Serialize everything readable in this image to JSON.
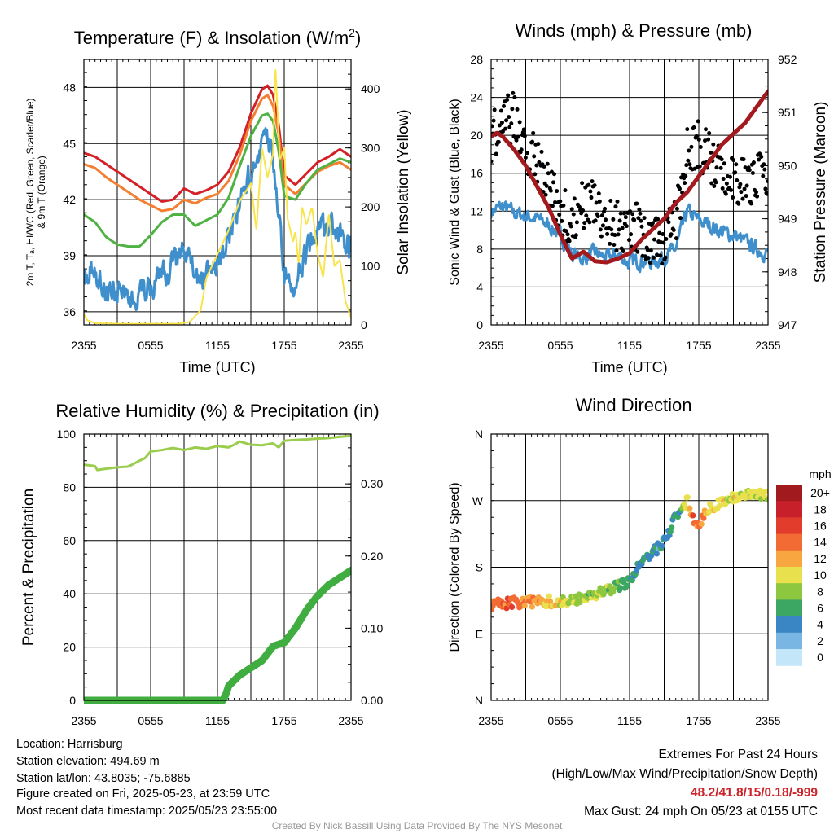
{
  "colors": {
    "temp": "#d42027",
    "dewpoint": "#4fb243",
    "heat_index": "#e4322b",
    "temp9m": "#f47f32",
    "sonic_wind": "#3f8fcc",
    "gust": "#000000",
    "solar": "#f9e44c",
    "pressure": "#a3191e",
    "rh": "#9acd4e",
    "precip": "#3fad3f",
    "max_line": "#cc2229"
  },
  "chart_data": [
    {
      "type": "line",
      "title": "Temperature (F) & Insolation (W/m",
      "title_sup": "2",
      "title_end": ")",
      "xlabel": "Time (UTC)",
      "ylabel_left": [
        "2m T, Tₐ, HI/WC (Red, Green, Scarlet/Blue)",
        "& 9m T (Orange)"
      ],
      "ylabel_right": "Solar Insolation (Yellow)",
      "x_ticks": [
        "2355",
        "0555",
        "1155",
        "1755",
        "2355"
      ],
      "x_range_hours": [
        0,
        24
      ],
      "ylim_left": [
        35.3,
        49.5
      ],
      "yticks_left": [
        36,
        39,
        42,
        45,
        48
      ],
      "ylim_right": [
        0,
        450
      ],
      "yticks_right": [
        0,
        100,
        200,
        300,
        400
      ],
      "grid": true,
      "series": [
        {
          "name": "2m T",
          "color_key": "temp",
          "axis": "left",
          "width": 3,
          "x": [
            0,
            1,
            2,
            3,
            4,
            5,
            6,
            7,
            8,
            9,
            10,
            11,
            12,
            13,
            14,
            15,
            16,
            16.5,
            17,
            17.5,
            18,
            19,
            20,
            21,
            22,
            23,
            24
          ],
          "y": [
            44.5,
            44.3,
            43.9,
            43.5,
            43.1,
            42.7,
            42.3,
            41.9,
            42.0,
            42.6,
            42.3,
            42.5,
            42.8,
            43.5,
            44.8,
            46.6,
            47.9,
            48.1,
            47.6,
            46.0,
            43.3,
            42.8,
            43.4,
            44.0,
            44.3,
            44.7,
            44.3
          ]
        },
        {
          "name": "9m T",
          "color_key": "temp9m",
          "axis": "left",
          "width": 3,
          "x": [
            0,
            1,
            2,
            3,
            4,
            5,
            6,
            7,
            8,
            9,
            10,
            11,
            12,
            13,
            14,
            15,
            16,
            16.5,
            17,
            17.5,
            18,
            19,
            20,
            21,
            22,
            23,
            24
          ],
          "y": [
            43.9,
            43.7,
            43.2,
            42.8,
            42.4,
            42.0,
            41.7,
            41.4,
            41.5,
            42.0,
            41.8,
            42.1,
            42.3,
            43.0,
            44.4,
            46.2,
            47.4,
            47.6,
            47.0,
            45.5,
            42.8,
            42.3,
            42.9,
            43.5,
            43.8,
            44.0,
            43.6
          ]
        },
        {
          "name": "Td",
          "color_key": "dewpoint",
          "axis": "left",
          "width": 3,
          "x": [
            0,
            1,
            2,
            3,
            4,
            5,
            6,
            7,
            8,
            9,
            10,
            11,
            12,
            13,
            14,
            15,
            16,
            16.5,
            17,
            17.5,
            18,
            19,
            20,
            21,
            22,
            23,
            24
          ],
          "y": [
            41.2,
            40.8,
            40.0,
            39.6,
            39.5,
            39.5,
            40.1,
            40.8,
            41.2,
            41.2,
            40.6,
            40.9,
            41.2,
            42.1,
            43.8,
            45.4,
            46.5,
            46.6,
            46.2,
            44.6,
            42.2,
            42.0,
            42.9,
            43.6,
            43.9,
            44.2,
            44.0
          ]
        },
        {
          "name": "HI/WC",
          "color_key": "sonic_wind",
          "axis": "left",
          "width": 3,
          "noise": 0.5,
          "x": [
            0,
            1,
            2,
            3,
            4,
            5,
            6,
            7,
            8,
            9,
            10,
            11,
            12,
            13,
            14,
            15,
            16,
            16.5,
            17,
            17.5,
            18,
            19,
            20,
            21,
            22,
            23,
            24
          ],
          "y": [
            38.3,
            38.0,
            37.3,
            37.0,
            36.9,
            36.8,
            37.3,
            37.8,
            38.5,
            39.2,
            37.8,
            37.9,
            38.5,
            39.8,
            41.8,
            43.6,
            44.8,
            45.3,
            44.0,
            41.5,
            38.2,
            37.4,
            39.3,
            40.4,
            40.6,
            40.2,
            39.4
          ]
        },
        {
          "name": "Solar",
          "color_key": "solar",
          "axis": "right",
          "width": 2,
          "x": [
            0,
            0.3,
            1,
            3,
            5,
            7,
            8.5,
            9.5,
            10.5,
            11,
            12,
            13,
            14,
            15,
            15.5,
            16,
            16.5,
            17,
            17.2,
            17.6,
            18,
            18.3,
            18.8,
            19,
            19.3,
            19.6,
            20,
            20.5,
            21,
            21.5,
            22,
            22.5,
            23,
            23.5,
            24
          ],
          "y": [
            18,
            8,
            3,
            2,
            2,
            2,
            2,
            5,
            25,
            80,
            120,
            160,
            210,
            240,
            160,
            300,
            250,
            290,
            440,
            280,
            300,
            180,
            140,
            160,
            100,
            200,
            170,
            200,
            120,
            80,
            190,
            100,
            110,
            40,
            12
          ]
        }
      ]
    },
    {
      "type": "line",
      "title": "Winds (mph) & Pressure (mb)",
      "xlabel": "Time (UTC)",
      "ylabel_left": "Sonic Wind & Gust (Blue, Black)",
      "ylabel_right": "Station Pressure (Maroon)",
      "x_ticks": [
        "2355",
        "0555",
        "1155",
        "1755",
        "2355"
      ],
      "x_range_hours": [
        0,
        24
      ],
      "ylim_left": [
        0,
        28
      ],
      "yticks_left": [
        0,
        4,
        8,
        12,
        16,
        20,
        24,
        28
      ],
      "ylim_right": [
        947,
        952
      ],
      "yticks_right": [
        947,
        948,
        949,
        950,
        951,
        952
      ],
      "grid": true,
      "series": [
        {
          "name": "Sonic Wind",
          "color_key": "sonic_wind",
          "axis": "left",
          "width": 3,
          "noise": 0.6,
          "x": [
            0,
            1,
            2,
            3,
            4,
            5,
            6,
            7,
            8,
            9,
            10,
            11,
            12,
            13,
            14,
            15,
            16,
            17,
            18,
            19,
            20,
            21,
            22,
            23,
            24
          ],
          "y": [
            12,
            12.5,
            11.8,
            11.5,
            11.2,
            10.5,
            9.5,
            7.5,
            7.0,
            7.6,
            7.0,
            7.4,
            6.5,
            6.8,
            6.6,
            7.2,
            8.0,
            12.0,
            11.0,
            10.5,
            9.8,
            9.5,
            8.8,
            8.0,
            7.5
          ]
        },
        {
          "name": "Gust",
          "color_key": "gust",
          "axis": "left",
          "type": "scatter",
          "count": 330,
          "x": [
            0,
            1,
            2,
            3,
            4,
            5,
            6,
            7,
            8,
            9,
            10,
            11,
            12,
            13,
            14,
            15,
            16,
            17,
            18,
            19,
            20,
            21,
            22,
            23,
            24
          ],
          "y": [
            20,
            21.5,
            22,
            19,
            17,
            14.5,
            12,
            11,
            12.5,
            13,
            11,
            10.5,
            10.5,
            10,
            9,
            9,
            11,
            18,
            19,
            17.5,
            16,
            15.5,
            15,
            15.5,
            15
          ]
        },
        {
          "name": "Pressure",
          "color_key": "pressure",
          "axis": "right",
          "width": 5,
          "x": [
            0,
            0.5,
            1,
            2,
            3,
            4,
            5,
            6,
            7,
            8,
            9,
            10,
            11,
            12,
            13,
            14,
            15,
            16,
            17,
            18,
            19,
            20,
            21,
            22,
            23,
            24
          ],
          "y": [
            950.55,
            950.62,
            950.55,
            950.3,
            950.0,
            949.6,
            949.2,
            948.7,
            948.25,
            948.38,
            948.2,
            948.18,
            948.25,
            948.35,
            948.6,
            948.8,
            949.0,
            949.3,
            949.5,
            949.8,
            950.1,
            950.4,
            950.6,
            950.8,
            951.1,
            951.4
          ]
        }
      ]
    },
    {
      "type": "line",
      "title": "Relative Humidity (%) & Precipitation (in)",
      "xlabel": "",
      "ylabel_left": "Percent & Precipitation",
      "x_ticks": [
        "2355",
        "0555",
        "1155",
        "1755",
        "2355"
      ],
      "x_range_hours": [
        0,
        24
      ],
      "ylim_left": [
        0,
        100
      ],
      "yticks_left": [
        0,
        20,
        40,
        60,
        80,
        100
      ],
      "ylim_right": [
        0,
        0.369
      ],
      "yticks_right_labels": [
        "0.00",
        "0.10",
        "0.20",
        "0.30"
      ],
      "yticks_right": [
        0,
        0.1,
        0.2,
        0.3
      ],
      "grid": true,
      "series": [
        {
          "name": "RH",
          "color_key": "rh",
          "axis": "left",
          "width": 3,
          "x": [
            0,
            1,
            1.2,
            2,
            3,
            4,
            5,
            5.5,
            6,
            7,
            8,
            9,
            10,
            11,
            12,
            13,
            13.5,
            14,
            15,
            16,
            17,
            17.5,
            18,
            19,
            20,
            21,
            22,
            23,
            24
          ],
          "y": [
            88.5,
            88.0,
            86.5,
            87.0,
            87.5,
            87.8,
            90.0,
            91.0,
            93.5,
            94.0,
            94.8,
            94.0,
            95.0,
            94.5,
            95.5,
            95.0,
            96.0,
            97.2,
            96.0,
            95.8,
            96.5,
            95.0,
            97.5,
            97.8,
            98.0,
            98.3,
            98.5,
            99.0,
            99.3
          ]
        },
        {
          "name": "Precipitation",
          "color_key": "precip",
          "axis": "right",
          "width": 9,
          "x": [
            0,
            12.5,
            12.8,
            13,
            14,
            15,
            16,
            17,
            18,
            19,
            20,
            21,
            22,
            23,
            24
          ],
          "y": [
            0,
            0,
            0.01,
            0.02,
            0.035,
            0.045,
            0.055,
            0.075,
            0.08,
            0.1,
            0.125,
            0.145,
            0.16,
            0.17,
            0.18
          ]
        }
      ]
    },
    {
      "type": "scatter",
      "title": "Wind Direction",
      "ylabel_left": "Direction (Colored By Speed)",
      "x_ticks": [
        "2355",
        "0555",
        "1155",
        "1755",
        "2355"
      ],
      "x_range_hours": [
        0,
        24
      ],
      "ylim_left": [
        0,
        360
      ],
      "yticks_left_labels": [
        "N",
        "E",
        "S",
        "W",
        "N"
      ],
      "yticks_left": [
        0,
        90,
        180,
        270,
        360
      ],
      "grid": true,
      "colorbar": {
        "unit": "mph",
        "labels": [
          "20+",
          "18",
          "16",
          "14",
          "12",
          "10",
          "8",
          "6",
          "4",
          "2",
          "0"
        ],
        "colors": [
          "#a11a1d",
          "#c8202a",
          "#e23c2c",
          "#f36b34",
          "#f8a740",
          "#e8e04c",
          "#8dc63f",
          "#3ca663",
          "#3a86c4",
          "#79b6e3",
          "#c3e6f9"
        ]
      },
      "series": [
        {
          "name": "Direction",
          "type": "scatter",
          "x": [
            0,
            1,
            2,
            3,
            4,
            5,
            6,
            7,
            8,
            9,
            10,
            11,
            12,
            12.5,
            13,
            14,
            14.5,
            15,
            15.5,
            16,
            16.5,
            17,
            17.5,
            18,
            19,
            20,
            21,
            22,
            23,
            24
          ],
          "y": [
            130,
            131,
            132,
            133,
            133,
            134,
            132,
            135,
            140,
            143,
            148,
            155,
            160,
            175,
            185,
            200,
            207,
            218,
            230,
            250,
            255,
            270,
            245,
            240,
            260,
            268,
            275,
            276,
            278,
            276
          ],
          "speed": [
            14,
            14,
            15,
            13,
            12,
            11,
            10,
            9,
            8,
            8,
            8,
            7,
            6,
            5,
            5,
            5,
            4,
            4,
            5,
            5,
            6,
            10,
            15,
            14,
            10,
            10,
            10,
            10,
            9,
            9
          ]
        }
      ]
    }
  ],
  "footer": {
    "location": "Location: Harrisburg",
    "elevation": "Station elevation: 494.69 m",
    "latlon": "Station lat/lon: 43.8035; -75.6885",
    "created": "Figure created on Fri, 2025-05-23, at 23:59 UTC",
    "recent": "Most recent data timestamp: 2025/05/23 23:55:00",
    "extremes_title": "Extremes For Past 24 Hours",
    "extremes_subtitle": "(High/Low/Max Wind/Precipitation/Snow Depth)",
    "extremes_values": "48.2/41.8/15/0.18/-999",
    "max_gust": "Max Gust: 24 mph On 05/23 at 0155 UTC",
    "credit": "Created By Nick Bassill Using Data Provided By The NYS Mesonet"
  }
}
